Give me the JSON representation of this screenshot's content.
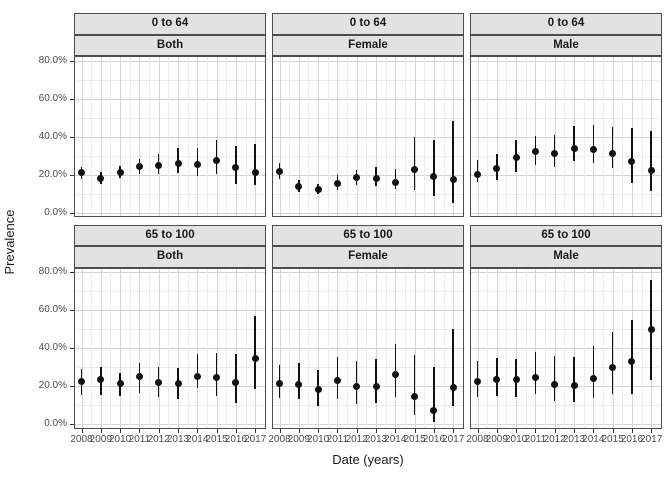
{
  "figure": {
    "x_axis_title": "Date (years)",
    "y_axis_title": "Prevalence"
  },
  "chart_data": {
    "type": "scatter",
    "subtype": "point-estimates-with-error-bars",
    "title": "",
    "xlabel": "Date (years)",
    "ylabel": "Prevalence",
    "x_tick_labels": [
      "2008",
      "2009",
      "2010",
      "2011",
      "2012",
      "2013",
      "2014",
      "2015",
      "2016",
      "2017"
    ],
    "y_tick_values": [
      0,
      20,
      40,
      60,
      80
    ],
    "y_tick_labels": [
      "0.0%",
      "20.0%",
      "40.0%",
      "60.0%",
      "80.0%"
    ],
    "ylim": [
      0,
      80
    ],
    "grid": "major+minor",
    "legend": "none",
    "facet_rows": [
      "0 to 64",
      "65 to 100"
    ],
    "facet_cols": [
      "Both",
      "Female",
      "Male"
    ],
    "panels": [
      {
        "age_group": "0 to 64",
        "sex": "Both",
        "estimate": [
          21,
          18,
          21,
          24,
          24.5,
          26,
          25.5,
          27.5,
          23.5,
          21
        ],
        "ci_low": [
          17.5,
          15,
          18,
          20.5,
          20.5,
          21,
          19,
          20,
          15,
          14.5
        ],
        "ci_high": [
          24,
          21.5,
          24.5,
          28,
          31,
          34,
          34,
          38,
          35,
          36
        ]
      },
      {
        "age_group": "0 to 64",
        "sex": "Female",
        "estimate": [
          21.5,
          13.5,
          12,
          15.5,
          18.5,
          18,
          16,
          22.5,
          19,
          17.5
        ],
        "ci_low": [
          17.5,
          11,
          9.5,
          12,
          14.5,
          14,
          12.5,
          12,
          8.5,
          5
        ],
        "ci_high": [
          26,
          17,
          15,
          19.5,
          22.5,
          24,
          23,
          39.5,
          38,
          48
        ]
      },
      {
        "age_group": "0 to 64",
        "sex": "Male",
        "estimate": [
          20,
          23,
          29,
          32,
          31,
          33.5,
          33,
          31,
          27,
          22
        ],
        "ci_low": [
          16,
          17,
          21.5,
          25,
          24,
          27,
          26,
          23.5,
          15.5,
          11.5
        ],
        "ci_high": [
          27.5,
          31,
          38,
          40.5,
          41,
          45.5,
          46,
          45,
          44.5,
          43
        ]
      },
      {
        "age_group": "65 to 100",
        "sex": "Both",
        "estimate": [
          22.5,
          23.5,
          21.5,
          25,
          22,
          21.5,
          25,
          24.5,
          22,
          34.5
        ],
        "ci_low": [
          15,
          15.5,
          14.5,
          16.5,
          14,
          13,
          19,
          14.5,
          11,
          18.5
        ],
        "ci_high": [
          29,
          30,
          27,
          32,
          30,
          29.5,
          37,
          37.5,
          37,
          57
        ]
      },
      {
        "age_group": "65 to 100",
        "sex": "Female",
        "estimate": [
          21.5,
          21,
          18,
          23,
          20,
          19.5,
          26,
          14.5,
          7,
          19
        ],
        "ci_low": [
          13.5,
          13,
          9.5,
          13,
          10.5,
          11,
          14,
          4.5,
          1,
          9.5
        ],
        "ci_high": [
          31,
          32,
          28.5,
          35.5,
          33,
          34,
          42,
          36.5,
          30,
          50
        ]
      },
      {
        "age_group": "65 to 100",
        "sex": "Male",
        "estimate": [
          22.5,
          23.5,
          23.5,
          24.5,
          21,
          20.5,
          24,
          29.5,
          33,
          50
        ],
        "ci_low": [
          14,
          15,
          14,
          16,
          12,
          11.5,
          13.5,
          16,
          16,
          23
        ],
        "ci_high": [
          33,
          35,
          34,
          38,
          36,
          35.5,
          41,
          48.5,
          55,
          76
        ]
      }
    ],
    "colors": {
      "point": "#111111",
      "error_bar": "#111111",
      "strip_fill": "#e2e2e2",
      "panel_border": "#4d4d4d",
      "grid_major": "#d6d6d6",
      "grid_minor": "#ececec",
      "tick_text": "#4d4d4d",
      "title_text": "#1a1a1a"
    }
  }
}
